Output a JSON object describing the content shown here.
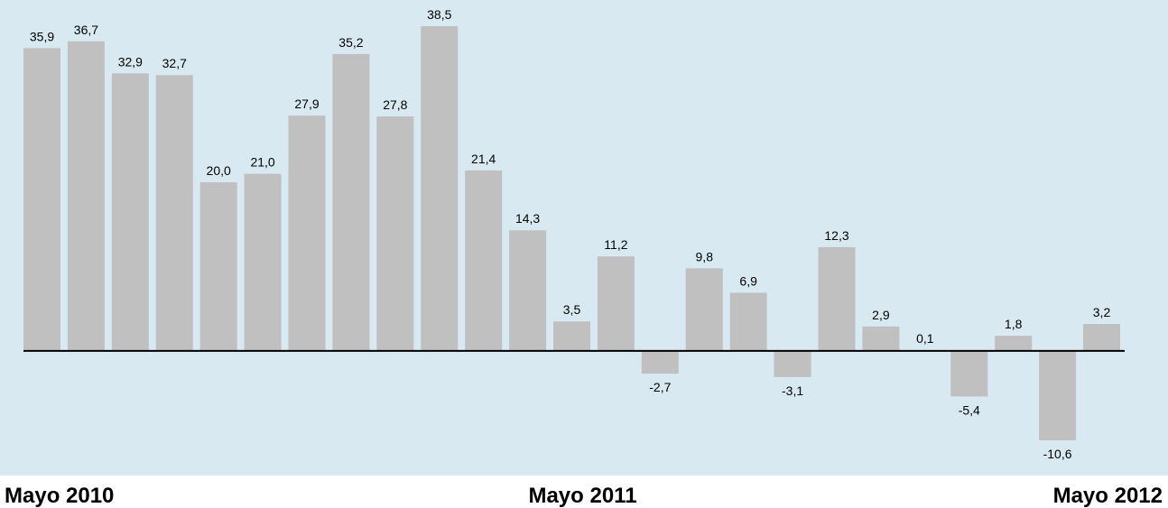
{
  "chart_data": {
    "type": "bar",
    "categories": [
      "Mayo 2010",
      null,
      null,
      null,
      null,
      null,
      null,
      null,
      null,
      null,
      null,
      null,
      "Mayo 2011",
      null,
      null,
      null,
      null,
      null,
      null,
      null,
      null,
      null,
      null,
      null,
      "Mayo 2012"
    ],
    "values": [
      35.9,
      36.7,
      32.9,
      32.7,
      20.0,
      21.0,
      27.9,
      35.2,
      27.8,
      38.5,
      21.4,
      14.3,
      3.5,
      11.2,
      -2.7,
      9.8,
      6.9,
      -3.1,
      12.3,
      2.9,
      0.1,
      -5.4,
      1.8,
      -10.6,
      3.2
    ],
    "value_labels": [
      "35,9",
      "36,7",
      "32,9",
      "32,7",
      "20,0",
      "21,0",
      "27,9",
      "35,2",
      "27,8",
      "38,5",
      "21,4",
      "14,3",
      "3,5",
      "11,2",
      "-2,7",
      "9,8",
      "6,9",
      "-3,1",
      "12,3",
      "2,9",
      "0,1",
      "-5,4",
      "1,8",
      "-10,6",
      "3,2"
    ],
    "color": "#c0c0c0"
  }
}
